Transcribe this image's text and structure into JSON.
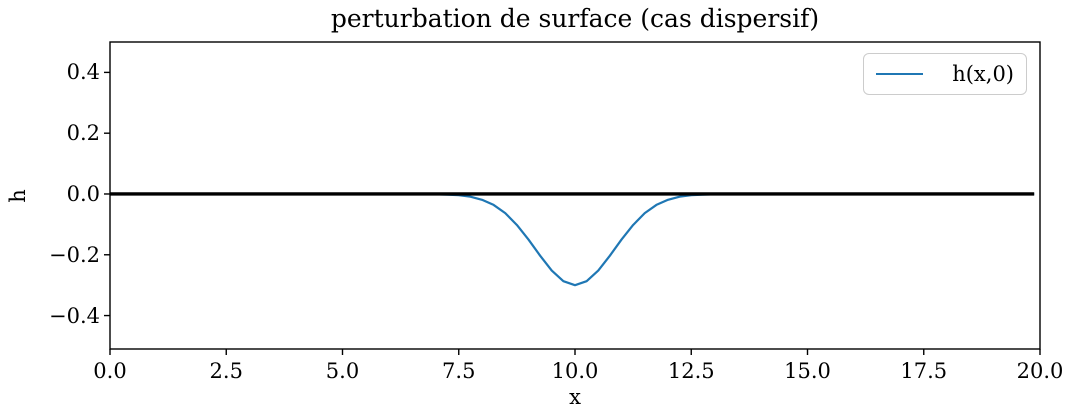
{
  "title": "perturbation de surface (cas dispersif)",
  "axes": {
    "xlabel": "x",
    "ylabel": "h"
  },
  "legend": {
    "position": "upper right",
    "items": [
      {
        "label": "h(x,0)",
        "color": "#1f77b4"
      }
    ]
  },
  "colors": {
    "curve": "#1f77b4",
    "zero_line": "#000000",
    "spine": "#000000",
    "legend_border": "#cccccc"
  },
  "chart_data": {
    "type": "line",
    "title": "perturbation de surface (cas dispersif)",
    "xlabel": "x",
    "ylabel": "h",
    "xlim": [
      0,
      20
    ],
    "ylim": [
      -0.51,
      0.5
    ],
    "grid": false,
    "legend_position": "upper right",
    "x_ticks": {
      "values": [
        0,
        2.5,
        5,
        7.5,
        10,
        12.5,
        15,
        17.5,
        20
      ],
      "labels": [
        "0.0",
        "2.5",
        "5.0",
        "7.5",
        "10.0",
        "12.5",
        "15.0",
        "17.5",
        "20.0"
      ]
    },
    "y_ticks": {
      "values": [
        0.4,
        0.2,
        0.0,
        -0.2,
        -0.4
      ],
      "labels": [
        "0.4",
        "0.2",
        "0.0",
        "−0.2",
        "−0.4"
      ]
    },
    "series": [
      {
        "name": "h(x,0)",
        "color": "#1f77b4",
        "linewidth": 2.2,
        "in_legend": true,
        "profile": {
          "shape": "gaussian_dip",
          "amplitude": -0.3,
          "center": 10,
          "sigma": 0.85
        },
        "x": [
          0,
          1,
          2,
          3,
          4,
          5,
          6,
          6.5,
          7,
          7.25,
          7.5,
          7.75,
          8,
          8.25,
          8.5,
          8.75,
          9,
          9.25,
          9.5,
          9.75,
          10,
          10.25,
          10.5,
          10.75,
          11,
          11.25,
          11.5,
          11.75,
          12,
          12.25,
          12.5,
          12.75,
          13,
          13.5,
          14,
          15,
          16,
          17,
          18,
          19,
          19.875
        ],
        "y": [
          0,
          0,
          0,
          0,
          0,
          0,
          0,
          0,
          -0.001,
          -0.002,
          -0.004,
          -0.009,
          -0.019,
          -0.036,
          -0.063,
          -0.102,
          -0.15,
          -0.203,
          -0.252,
          -0.287,
          -0.3,
          -0.287,
          -0.252,
          -0.203,
          -0.15,
          -0.102,
          -0.063,
          -0.036,
          -0.019,
          -0.009,
          -0.004,
          -0.002,
          -0.001,
          0,
          0,
          0,
          0,
          0,
          0,
          0,
          0
        ]
      },
      {
        "name": "surface-at-rest-level",
        "color": "#000000",
        "linewidth": 3.4,
        "in_legend": false,
        "x": [
          0,
          19.875
        ],
        "y": [
          0,
          0
        ]
      }
    ]
  }
}
